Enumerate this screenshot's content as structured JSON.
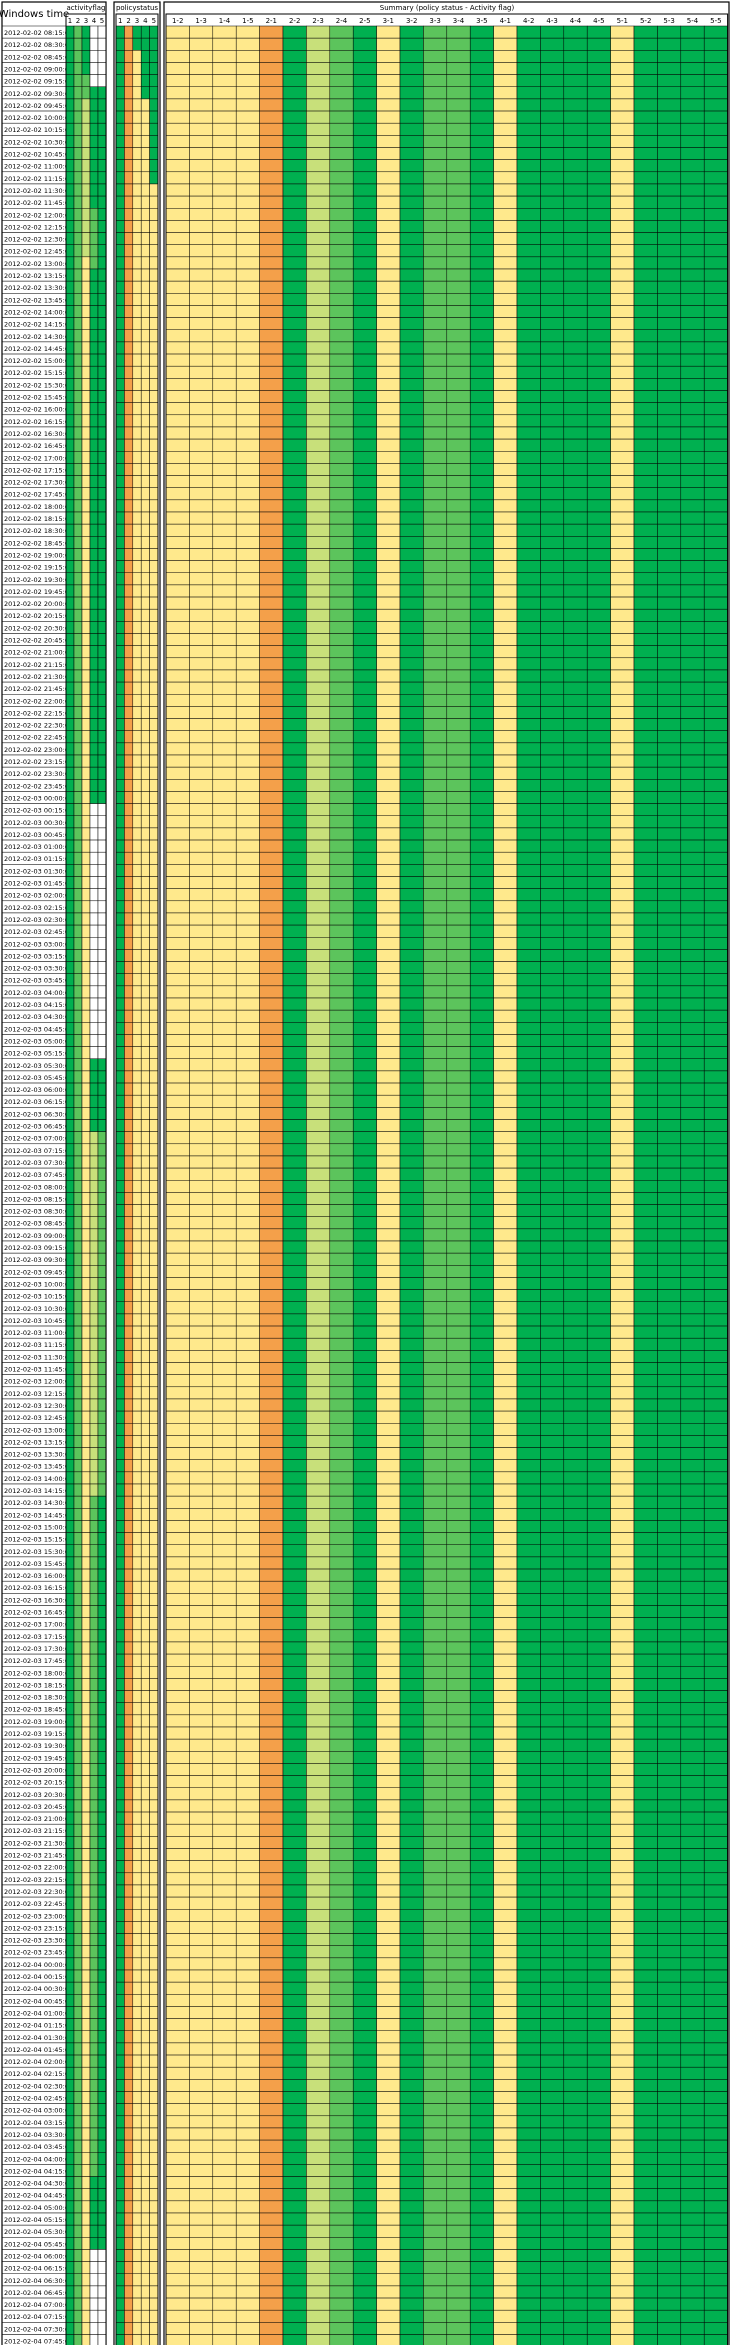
{
  "chart_data": {
    "type": "heatmap",
    "panels": {
      "time": {
        "title": "Windows time"
      },
      "activity": {
        "title": "activityflag",
        "columns": [
          "1",
          "2",
          "3",
          "4",
          "5"
        ]
      },
      "policy": {
        "title": "policystatus",
        "columns": [
          "1",
          "2",
          "3",
          "4",
          "5"
        ]
      },
      "summary": {
        "title": "Summary (policy status - Activity flag)",
        "columns": [
          "1-2",
          "1-3",
          "1-4",
          "1-5",
          "2-1",
          "2-2",
          "2-3",
          "2-4",
          "2-5",
          "3-1",
          "3-2",
          "3-3",
          "3-4",
          "3-5",
          "4-1",
          "4-2",
          "4-3",
          "4-4",
          "4-5",
          "5-1",
          "5-2",
          "5-3",
          "5-4",
          "5-5"
        ]
      }
    },
    "time_start": "2012-02-02 08:15:00",
    "time_step_minutes": 15,
    "row_count": 191,
    "colors": {
      "white": "#ffffff",
      "yellow": "#ffe98c",
      "pale_green": "#c8e07a",
      "mid_green": "#5cc45c",
      "green": "#00b050",
      "orange": "#f4a04a",
      "red": "#ff0000"
    },
    "activity_segments": [
      [
        [
          0,
          190,
          "#00b050"
        ]
      ],
      [
        [
          0,
          190,
          "#5cc45c"
        ]
      ],
      [
        [
          0,
          3,
          "#00b050"
        ],
        [
          4,
          5,
          "#5cc45c"
        ],
        [
          6,
          18,
          "#c8e07a"
        ],
        [
          19,
          63,
          "#ffe98c"
        ],
        [
          64,
          120,
          "#ffe98c"
        ],
        [
          121,
          190,
          "#ffe98c"
        ]
      ],
      [
        [
          5,
          14,
          "#00b050"
        ],
        [
          15,
          19,
          "#5cc45c"
        ],
        [
          20,
          63,
          "#00b050"
        ],
        [
          64,
          120,
          "#ffffff"
        ],
        [
          85,
          90,
          "#00b050"
        ],
        [
          91,
          120,
          "#c8e07a"
        ],
        [
          121,
          176,
          "#5cc45c"
        ],
        [
          177,
          182,
          "#00b050"
        ],
        [
          183,
          190,
          "#ffffff"
        ]
      ],
      [
        [
          5,
          14,
          "#00b050"
        ],
        [
          15,
          63,
          "#00b050"
        ],
        [
          64,
          84,
          "#ffffff"
        ],
        [
          85,
          90,
          "#00b050"
        ],
        [
          91,
          120,
          "#5cc45c"
        ],
        [
          121,
          176,
          "#00b050"
        ],
        [
          177,
          182,
          "#00b050"
        ],
        [
          183,
          190,
          "#ffffff"
        ]
      ]
    ],
    "policy_segments": [
      [
        [
          0,
          190,
          "#00b050"
        ]
      ],
      [
        [
          0,
          190,
          "#f4a04a"
        ]
      ],
      [
        [
          0,
          1,
          "#00b050"
        ],
        [
          2,
          190,
          "#ffe98c"
        ]
      ],
      [
        [
          0,
          5,
          "#00b050"
        ],
        [
          6,
          190,
          "#ffe98c"
        ]
      ],
      [
        [
          0,
          12,
          "#00b050"
        ],
        [
          13,
          190,
          "#ffe98c"
        ]
      ]
    ],
    "summary_segments": [
      [
        [
          0,
          190,
          "#ffe98c"
        ]
      ],
      [
        [
          0,
          190,
          "#ffe98c"
        ]
      ],
      [
        [
          0,
          190,
          "#ffe98c"
        ]
      ],
      [
        [
          0,
          190,
          "#ffe98c"
        ]
      ],
      [
        [
          0,
          190,
          "#f4a04a"
        ]
      ],
      [
        [
          0,
          190,
          "#00b050"
        ]
      ],
      [
        [
          0,
          190,
          "#c8e07a"
        ]
      ],
      [
        [
          0,
          190,
          "#5cc45c"
        ]
      ],
      [
        [
          0,
          190,
          "#00b050"
        ]
      ],
      [
        [
          0,
          190,
          "#ffe98c"
        ]
      ],
      [
        [
          0,
          190,
          "#00b050"
        ]
      ],
      [
        [
          0,
          190,
          "#5cc45c"
        ]
      ],
      [
        [
          0,
          190,
          "#5cc45c"
        ]
      ],
      [
        [
          0,
          190,
          "#00b050"
        ]
      ],
      [
        [
          0,
          190,
          "#ffe98c"
        ]
      ],
      [
        [
          0,
          190,
          "#00b050"
        ]
      ],
      [
        [
          0,
          190,
          "#00b050"
        ]
      ],
      [
        [
          0,
          190,
          "#00b050"
        ]
      ],
      [
        [
          0,
          190,
          "#00b050"
        ]
      ],
      [
        [
          0,
          190,
          "#ffe98c"
        ]
      ],
      [
        [
          0,
          190,
          "#00b050"
        ]
      ],
      [
        [
          0,
          190,
          "#00b050"
        ]
      ],
      [
        [
          0,
          190,
          "#00b050"
        ]
      ],
      [
        [
          0,
          190,
          "#00b050"
        ]
      ]
    ]
  }
}
